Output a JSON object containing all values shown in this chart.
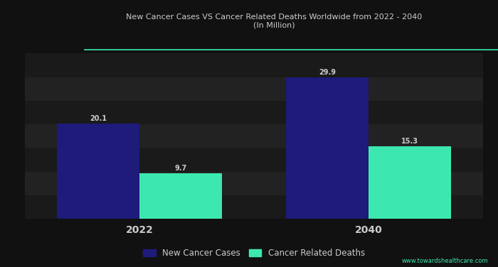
{
  "title_line1": "New Cancer Cases VS Cancer Related Deaths Worldwide from 2022 - 2040",
  "title_line2": "(In Million)",
  "categories": [
    "2022",
    "2040"
  ],
  "new_cases": [
    20.1,
    29.9
  ],
  "related_deaths": [
    9.7,
    15.3
  ],
  "bar_color_cases": "#1e1b7b",
  "bar_color_deaths": "#3de8b0",
  "legend_cases": "New Cancer Cases",
  "legend_deaths": "Cancer Related Deaths",
  "bar_width": 0.18,
  "ylim": [
    0,
    35
  ],
  "background_color": "#111111",
  "stripe_color_dark": "#1a1a1a",
  "stripe_color_light": "#222222",
  "grid_color": "#333333",
  "text_color": "#cccccc",
  "accent_line_color": "#3de8b0",
  "value_labels_cases": [
    "20.1",
    "29.9"
  ],
  "value_labels_deaths": [
    "9.7",
    "15.3"
  ],
  "x_positions": [
    0.25,
    0.75
  ],
  "stripe_yticks": [
    0,
    5,
    10,
    15,
    20,
    25,
    30,
    35
  ]
}
